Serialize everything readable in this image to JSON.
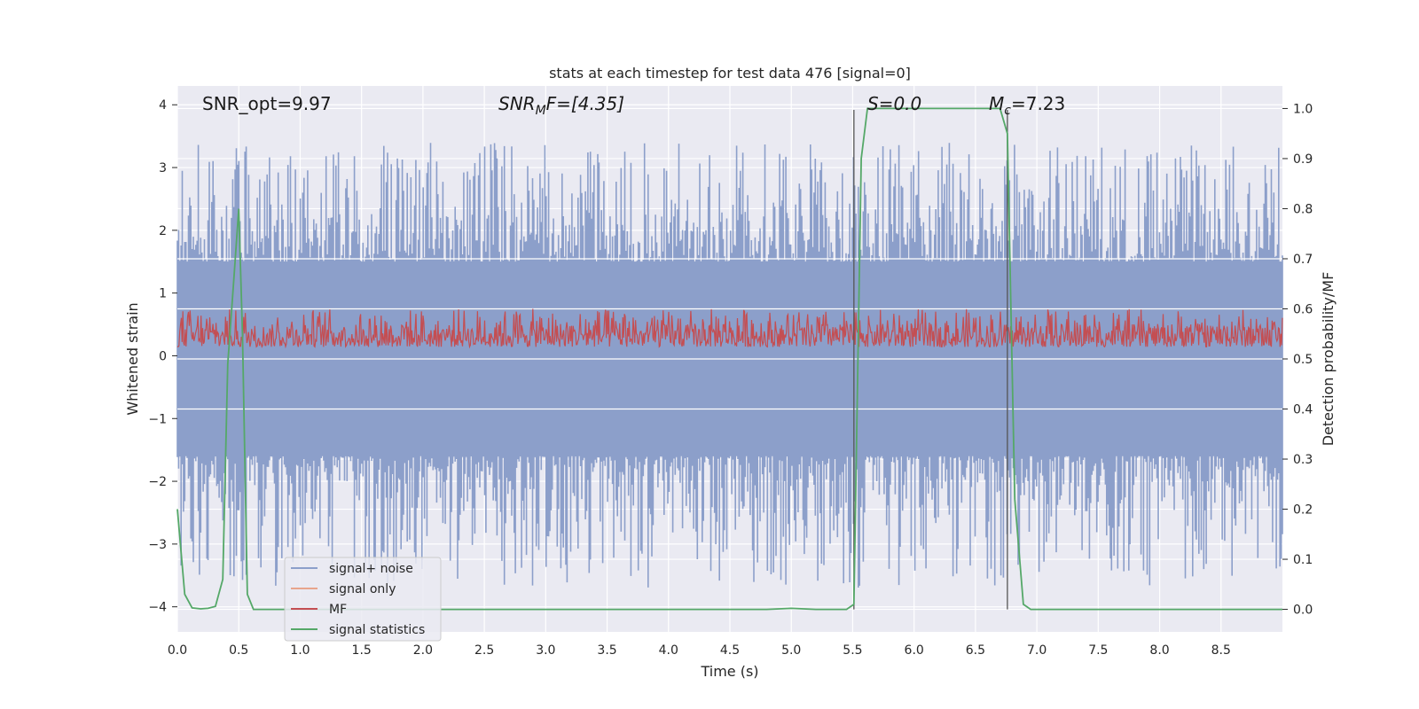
{
  "chart_data": {
    "type": "line",
    "title": "stats at each timestep for test data 476 [signal=0]",
    "xlabel": "Time (s)",
    "ylabel": "Whitened strain",
    "y2label": "Detection probability/MF",
    "xlim": [
      0.0,
      9.0
    ],
    "ylim": [
      -4.4,
      4.3
    ],
    "y2lim": [
      -0.045,
      1.045
    ],
    "xticks": [
      "0.0",
      "0.5",
      "1.0",
      "1.5",
      "2.0",
      "2.5",
      "3.0",
      "3.5",
      "4.0",
      "4.5",
      "5.0",
      "5.5",
      "6.0",
      "6.5",
      "7.0",
      "7.5",
      "8.0",
      "8.5"
    ],
    "yticks": [
      "4",
      "3",
      "2",
      "1",
      "0",
      "−1",
      "−2",
      "−3",
      "−4"
    ],
    "y2ticks": [
      "1.0",
      "0.9",
      "0.8",
      "0.7",
      "0.6",
      "0.5",
      "0.4",
      "0.3",
      "0.2",
      "0.1",
      "0.0"
    ],
    "grid": true,
    "legend_position": "lower-left",
    "annotations": {
      "snr_opt": "SNR_opt=9.97",
      "snr_mf_base": "SNR",
      "snr_mf_sub": "M",
      "snr_mf_rest": "F=[4.35]",
      "s_label": "S=0.0",
      "mc_base": "M",
      "mc_sub": "c",
      "mc_rest": "=7.23"
    },
    "vertical_lines_x": [
      5.51,
      6.76
    ],
    "series": [
      {
        "name": "signal+ noise",
        "color": "#8c9fca",
        "axis": "left",
        "description_values": "noise envelope",
        "envelope_upper_range": [
          1.5,
          3.4
        ],
        "envelope_lower_range": [
          -1.6,
          -3.7
        ]
      },
      {
        "name": "signal only",
        "color": "#e8a58c",
        "axis": "left",
        "values": []
      },
      {
        "name": "MF",
        "color": "#c44e52",
        "axis": "right",
        "value_range": [
          0.505,
          0.6
        ]
      },
      {
        "name": "signal statistics",
        "color": "#55a868",
        "axis": "right",
        "x": [
          0.0,
          0.06,
          0.12,
          0.19,
          0.25,
          0.31,
          0.37,
          0.41,
          0.46,
          0.5,
          0.53,
          0.57,
          0.62,
          0.7,
          0.8,
          1.0,
          2.0,
          3.0,
          4.0,
          4.8,
          5.0,
          5.1,
          5.2,
          5.3,
          5.45,
          5.51,
          5.57,
          5.62,
          5.8,
          6.0,
          6.5,
          6.7,
          6.76,
          6.82,
          6.89,
          6.95,
          7.0,
          8.0,
          9.0
        ],
        "values": [
          0.2,
          0.03,
          0.003,
          0.001,
          0.002,
          0.006,
          0.06,
          0.49,
          0.66,
          0.8,
          0.55,
          0.03,
          0.0,
          0.0,
          0.0,
          0.0,
          0.0,
          0.0,
          0.0,
          0.0,
          0.002,
          0.001,
          0.0,
          0.0,
          0.0,
          0.01,
          0.9,
          1.0,
          1.0,
          1.0,
          1.0,
          1.0,
          0.95,
          0.22,
          0.01,
          0.0,
          0.0,
          0.0,
          0.0
        ]
      }
    ]
  }
}
